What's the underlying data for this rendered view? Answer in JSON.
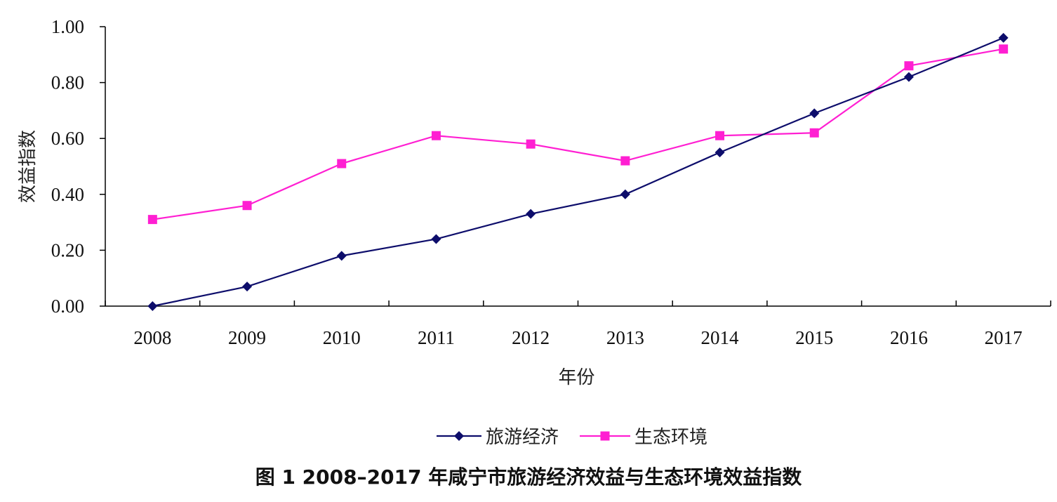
{
  "caption": "图 1   2008–2017 年咸宁市旅游经济效益与生态环境效益指数",
  "chart_data": {
    "type": "line",
    "xlabel": "年份",
    "ylabel": "效益指数",
    "categories": [
      "2008",
      "2009",
      "2010",
      "2011",
      "2012",
      "2013",
      "2014",
      "2015",
      "2016",
      "2017"
    ],
    "ylim": [
      0,
      1
    ],
    "yticks": [
      "0.00",
      "0.20",
      "0.40",
      "0.60",
      "0.80",
      "1.00"
    ],
    "grid": false,
    "legend_position": "bottom",
    "series": [
      {
        "name": "旅游经济",
        "color": "#0d0d6b",
        "marker": "diamond",
        "values": [
          0.0,
          0.07,
          0.18,
          0.24,
          0.33,
          0.4,
          0.55,
          0.69,
          0.82,
          0.96
        ]
      },
      {
        "name": "生态环境",
        "color": "#ff1fd2",
        "marker": "square",
        "values": [
          0.31,
          0.36,
          0.51,
          0.61,
          0.58,
          0.52,
          0.61,
          0.62,
          0.86,
          0.92
        ]
      }
    ]
  }
}
